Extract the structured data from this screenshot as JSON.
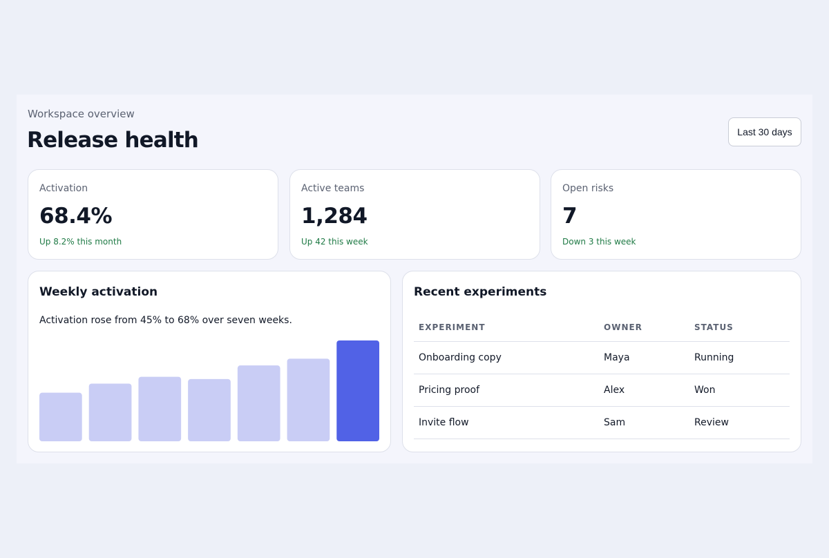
{
  "header": {
    "eyebrow": "Workspace overview",
    "title": "Release health",
    "range_label": "Last 30 days"
  },
  "stats": [
    {
      "label": "Activation",
      "value": "68.4%",
      "trend": "Up 8.2% this month"
    },
    {
      "label": "Active teams",
      "value": "1,284",
      "trend": "Up 42 this week"
    },
    {
      "label": "Open risks",
      "value": "7",
      "trend": "Down 3 this week"
    }
  ],
  "chart": {
    "title": "Weekly activation",
    "caption": "Activation rose from 45% to 68% over seven weeks."
  },
  "chart_data": {
    "type": "bar",
    "categories": [
      "",
      "",
      "",
      "",
      "",
      "",
      ""
    ],
    "values": [
      45,
      49,
      52,
      51,
      57,
      60,
      68
    ],
    "ylim": [
      30,
      68
    ],
    "grid": false,
    "colors": {
      "default": "#c9cdf5",
      "highlight": "#5162e6"
    },
    "highlight_index": 6
  },
  "experiments": {
    "title": "Recent experiments",
    "columns": [
      "EXPERIMENT",
      "OWNER",
      "STATUS"
    ],
    "rows": [
      [
        "Onboarding copy",
        "Maya",
        "Running"
      ],
      [
        "Pricing proof",
        "Alex",
        "Won"
      ],
      [
        "Invite flow",
        "Sam",
        "Review"
      ]
    ]
  },
  "colors": {
    "background": "#edf0f8",
    "panel": "#f4f5fc",
    "trend_positive": "#1f7a45",
    "accent": "#5162e6"
  }
}
